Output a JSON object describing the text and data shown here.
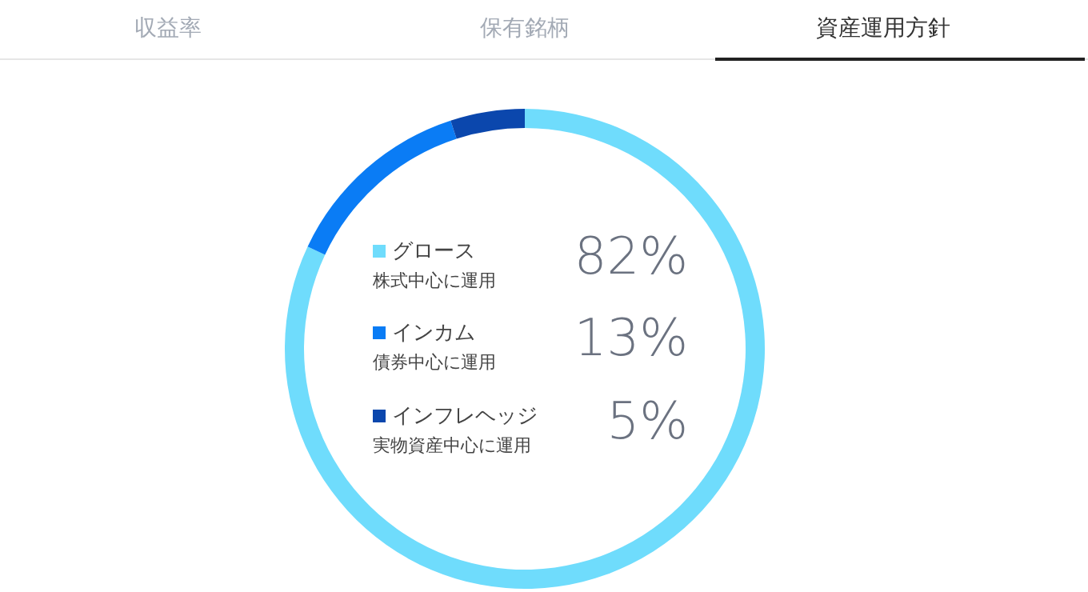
{
  "chart_data": {
    "type": "donut",
    "categories": [
      "グロース",
      "インカム",
      "インフレヘッジ"
    ],
    "values": [
      82,
      13,
      5
    ],
    "colors": [
      "#6fdcfc",
      "#0a7cf5",
      "#0b47ad"
    ],
    "value_labels": [
      "82%",
      "13%",
      "5%"
    ],
    "legend": "left",
    "annotations": [
      "収益率",
      "保有銘柄",
      "資産運用方針",
      "株式中心に運用",
      "債券中心に運用",
      "実物資産中心に運用"
    ]
  }
}
